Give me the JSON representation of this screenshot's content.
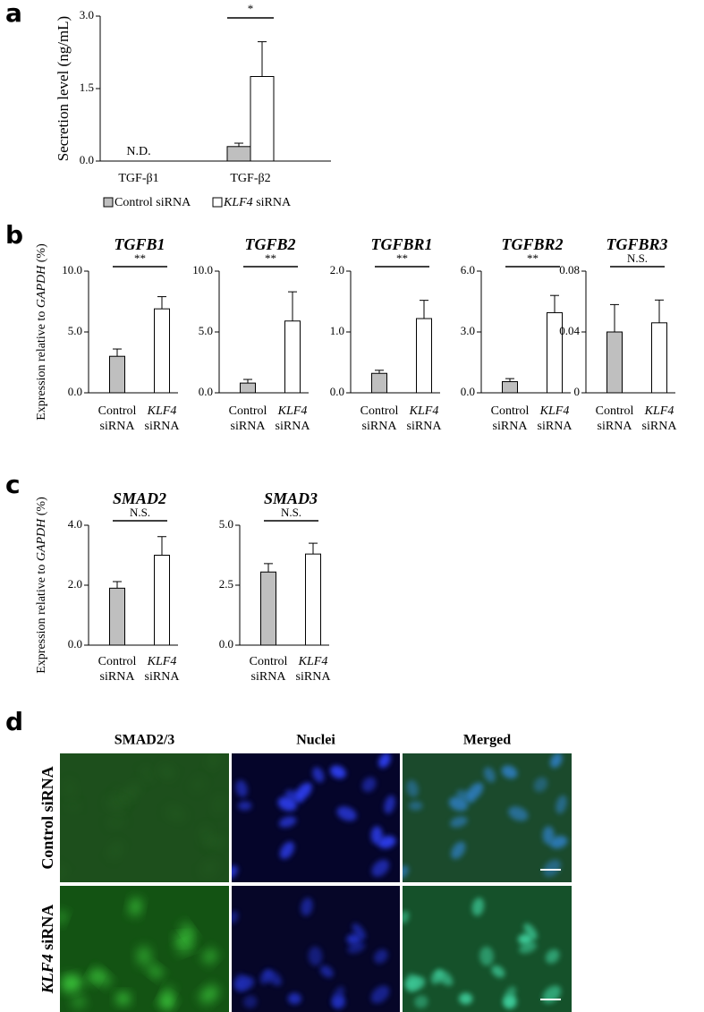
{
  "figure": {
    "panel_labels": [
      "a",
      "b",
      "c",
      "d"
    ]
  },
  "chart_data": [
    {
      "type": "bar",
      "ylabel": "Secretion level (ng/mL)",
      "categories": [
        "TGF-β1",
        "TGF-β2"
      ],
      "series": [
        {
          "name": "Control siRNA",
          "color": "#bfbfbf",
          "values": [
            null,
            0.3
          ],
          "errors": [
            null,
            0.07
          ]
        },
        {
          "name": "KLF4 siRNA",
          "color": "#ffffff",
          "values": [
            null,
            1.75
          ],
          "errors": [
            null,
            0.72
          ]
        }
      ],
      "ylim": [
        0,
        3
      ],
      "yticks": [
        {
          "value": 0,
          "label": "0.0"
        },
        {
          "value": 1.5,
          "label": "1.5"
        },
        {
          "value": 3,
          "label": "3.0"
        }
      ],
      "na_label": "N.D.",
      "significance": "*"
    },
    {
      "type": "bar",
      "title": "TGFB1",
      "ylabel": "Expression relative to GAPDH (%)",
      "categories": [
        [
          "Control",
          "siRNA"
        ],
        [
          "KLF4",
          "siRNA"
        ]
      ],
      "values": [
        3.0,
        6.9
      ],
      "errors": [
        0.6,
        1.0
      ],
      "colors": [
        "#bfbfbf",
        "#ffffff"
      ],
      "ylim": [
        0,
        10
      ],
      "yticks": [
        {
          "value": 0,
          "label": "0.0"
        },
        {
          "value": 5,
          "label": "5.0"
        },
        {
          "value": 10,
          "label": "10.0"
        }
      ],
      "significance": "**"
    },
    {
      "type": "bar",
      "title": "TGFB2",
      "categories": [
        [
          "Control",
          "siRNA"
        ],
        [
          "KLF4",
          "siRNA"
        ]
      ],
      "values": [
        0.8,
        5.9
      ],
      "errors": [
        0.3,
        2.4
      ],
      "colors": [
        "#bfbfbf",
        "#ffffff"
      ],
      "ylim": [
        0,
        10
      ],
      "yticks": [
        {
          "value": 0,
          "label": "0.0"
        },
        {
          "value": 5,
          "label": "5.0"
        },
        {
          "value": 10,
          "label": "10.0"
        }
      ],
      "significance": "**"
    },
    {
      "type": "bar",
      "title": "TGFBR1",
      "categories": [
        [
          "Control",
          "siRNA"
        ],
        [
          "KLF4",
          "siRNA"
        ]
      ],
      "values": [
        0.32,
        1.22
      ],
      "errors": [
        0.05,
        0.3
      ],
      "colors": [
        "#bfbfbf",
        "#ffffff"
      ],
      "ylim": [
        0,
        2
      ],
      "yticks": [
        {
          "value": 0,
          "label": "0.0"
        },
        {
          "value": 1,
          "label": "1.0"
        },
        {
          "value": 2,
          "label": "2.0"
        }
      ],
      "significance": "**"
    },
    {
      "type": "bar",
      "title": "TGFBR2",
      "categories": [
        [
          "Control",
          "siRNA"
        ],
        [
          "KLF4",
          "siRNA"
        ]
      ],
      "values": [
        0.55,
        3.95
      ],
      "errors": [
        0.15,
        0.85
      ],
      "colors": [
        "#bfbfbf",
        "#ffffff"
      ],
      "ylim": [
        0,
        6
      ],
      "yticks": [
        {
          "value": 0,
          "label": "0.0"
        },
        {
          "value": 3,
          "label": "3.0"
        },
        {
          "value": 6,
          "label": "6.0"
        }
      ],
      "significance": "**"
    },
    {
      "type": "bar",
      "title": "TGFBR3",
      "categories": [
        [
          "Control",
          "siRNA"
        ],
        [
          "KLF4",
          "siRNA"
        ]
      ],
      "values": [
        0.04,
        0.046
      ],
      "errors": [
        0.018,
        0.015
      ],
      "colors": [
        "#bfbfbf",
        "#ffffff"
      ],
      "ylim": [
        0,
        0.08
      ],
      "yticks": [
        0,
        0.04,
        0.08
      ],
      "significance": "N.S."
    },
    {
      "type": "bar",
      "title": "SMAD2",
      "ylabel": "Expression relative to GAPDH (%)",
      "categories": [
        [
          "Control",
          "siRNA"
        ],
        [
          "KLF4",
          "siRNA"
        ]
      ],
      "values": [
        1.9,
        3.0
      ],
      "errors": [
        0.22,
        0.62
      ],
      "colors": [
        "#bfbfbf",
        "#ffffff"
      ],
      "ylim": [
        0,
        4
      ],
      "yticks": [
        {
          "value": 0,
          "label": "0.0"
        },
        {
          "value": 2,
          "label": "2.0"
        },
        {
          "value": 4,
          "label": "4.0"
        }
      ],
      "significance": "N.S."
    },
    {
      "type": "bar",
      "title": "SMAD3",
      "categories": [
        [
          "Control",
          "siRNA"
        ],
        [
          "KLF4",
          "siRNA"
        ]
      ],
      "values": [
        3.05,
        3.8
      ],
      "errors": [
        0.35,
        0.45
      ],
      "colors": [
        "#bfbfbf",
        "#ffffff"
      ],
      "ylim": [
        0,
        5
      ],
      "yticks": [
        {
          "value": 0,
          "label": "0.0"
        },
        {
          "value": 2.5,
          "label": "2.5"
        },
        {
          "value": 5,
          "label": "5.0"
        }
      ],
      "significance": "N.S."
    }
  ],
  "micrographs": {
    "columns": [
      "SMAD2/3",
      "Nuclei",
      "Merged"
    ],
    "rows": [
      "Control siRNA",
      "KLF4 siRNA"
    ]
  }
}
